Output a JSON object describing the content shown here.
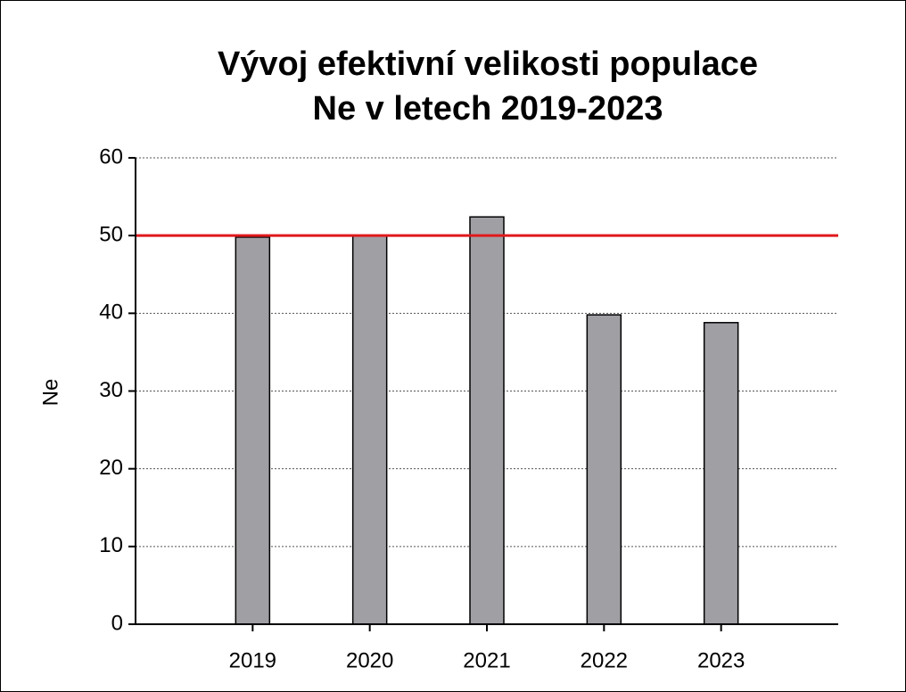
{
  "chart_data": {
    "type": "bar",
    "title": [
      "Vývoj efektivní velikosti populace",
      "Ne v letech 2019-2023"
    ],
    "y_label": "Ne",
    "categories": [
      "2019",
      "2020",
      "2021",
      "2022",
      "2023"
    ],
    "values": [
      49.8,
      50.0,
      52.4,
      39.8,
      38.8
    ],
    "color": "#a09fa4",
    "ylim": [
      0,
      60
    ],
    "yticks": [
      0,
      10,
      20,
      30,
      40,
      50,
      60
    ],
    "grid": true,
    "reference_line": {
      "value": 50,
      "color": "#e0191c"
    }
  }
}
